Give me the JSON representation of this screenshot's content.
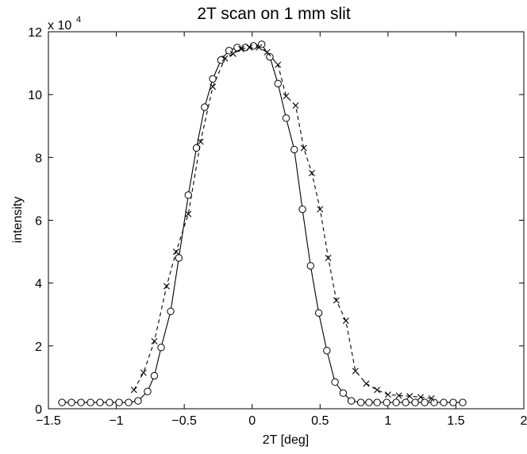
{
  "chart_data": {
    "type": "line",
    "title": "2T scan on 1 mm slit",
    "xlabel": "2T [deg]",
    "ylabel": "intensity",
    "y_exponent_label": "x 10",
    "y_exponent_power": "4",
    "xlim": [
      -1.5,
      2
    ],
    "ylim": [
      0,
      12
    ],
    "y_unit_multiplier": 10000,
    "xticks": [
      -1.5,
      -1,
      -0.5,
      0,
      0.5,
      1,
      1.5,
      2
    ],
    "xtick_labels": [
      "−1.5",
      "−1",
      "−0.5",
      "0",
      "0.5",
      "1",
      "1.5",
      "2"
    ],
    "yticks": [
      0,
      2,
      4,
      6,
      8,
      10,
      12
    ],
    "ytick_labels": [
      "0",
      "2",
      "4",
      "6",
      "8",
      "10",
      "12"
    ],
    "grid": false,
    "legend": "none",
    "series": [
      {
        "line_style": "solid",
        "marker": "circle",
        "color": "#000000",
        "x": [
          -1.4,
          -1.33,
          -1.26,
          -1.19,
          -1.12,
          -1.05,
          -0.98,
          -0.91,
          -0.84,
          -0.77,
          -0.72,
          -0.67,
          -0.6,
          -0.54,
          -0.47,
          -0.41,
          -0.35,
          -0.29,
          -0.23,
          -0.17,
          -0.11,
          -0.05,
          0.01,
          0.07,
          0.13,
          0.19,
          0.25,
          0.31,
          0.37,
          0.43,
          0.49,
          0.55,
          0.61,
          0.67,
          0.73,
          0.8,
          0.86,
          0.92,
          0.99,
          1.06,
          1.13,
          1.2,
          1.27,
          1.34,
          1.41,
          1.48,
          1.55
        ],
        "y": [
          0.2,
          0.2,
          0.2,
          0.2,
          0.2,
          0.2,
          0.2,
          0.2,
          0.25,
          0.55,
          1.05,
          1.95,
          3.1,
          4.8,
          6.8,
          8.3,
          9.6,
          10.5,
          11.1,
          11.4,
          11.5,
          11.5,
          11.55,
          11.6,
          11.2,
          10.35,
          9.25,
          8.25,
          6.35,
          4.55,
          3.05,
          1.85,
          0.85,
          0.5,
          0.25,
          0.2,
          0.2,
          0.2,
          0.2,
          0.2,
          0.2,
          0.2,
          0.2,
          0.2,
          0.2,
          0.2,
          0.2
        ]
      },
      {
        "line_style": "dashed",
        "marker": "x",
        "color": "#000000",
        "x": [
          -0.87,
          -0.8,
          -0.72,
          -0.63,
          -0.56,
          -0.47,
          -0.38,
          -0.29,
          -0.2,
          -0.14,
          -0.08,
          -0.02,
          0.05,
          0.11,
          0.19,
          0.25,
          0.32,
          0.38,
          0.44,
          0.5,
          0.56,
          0.62,
          0.69,
          0.76,
          0.84,
          0.92,
          1.0,
          1.08,
          1.16,
          1.24,
          1.32
        ],
        "y": [
          0.6,
          1.15,
          2.15,
          3.9,
          5.0,
          6.2,
          8.5,
          10.25,
          11.15,
          11.3,
          11.45,
          11.5,
          11.5,
          11.35,
          10.95,
          9.95,
          9.65,
          8.3,
          7.5,
          6.35,
          4.8,
          3.45,
          2.8,
          1.2,
          0.8,
          0.6,
          0.45,
          0.42,
          0.4,
          0.37,
          0.33
        ]
      }
    ]
  }
}
